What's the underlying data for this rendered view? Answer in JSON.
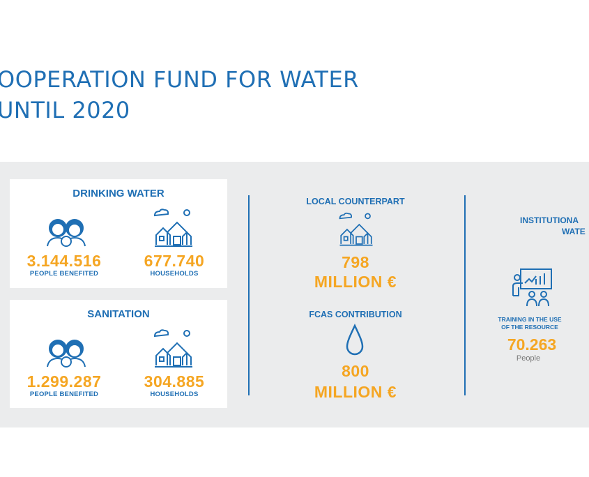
{
  "title": {
    "line1": "OOPERATION FUND FOR WATER",
    "line2": "UNTIL 2020"
  },
  "drinking_water": {
    "title": "DRINKING WATER",
    "people_value": "3.144.516",
    "people_label": "PEOPLE BENEFITED",
    "households_value": "677.740",
    "households_label": "HOUSEHOLDS"
  },
  "sanitation": {
    "title": "SANITATION",
    "people_value": "1.299.287",
    "people_label": "PEOPLE BENEFITED",
    "households_value": "304.885",
    "households_label": "HOUSEHOLDS"
  },
  "local_counterpart": {
    "title": "LOCAL COUNTERPART",
    "value": "798",
    "unit": "MILLION €"
  },
  "fcas_contribution": {
    "title": "FCAS CONTRIBUTION",
    "value": "800",
    "unit": "MILLION €"
  },
  "institutional": {
    "title_line1": "INSTITUTIONA",
    "title_line2": "WATE",
    "training_line1": "TRAINING IN THE USE",
    "training_line2": "OF THE RESOURCE",
    "training_value": "70.263",
    "training_unit": "People"
  },
  "colors": {
    "blue": "#1f6fb4",
    "orange": "#f5a623",
    "band": "#ebeced"
  },
  "icons": [
    "people-icon",
    "houses-icon",
    "water-drop-icon",
    "training-icon"
  ]
}
